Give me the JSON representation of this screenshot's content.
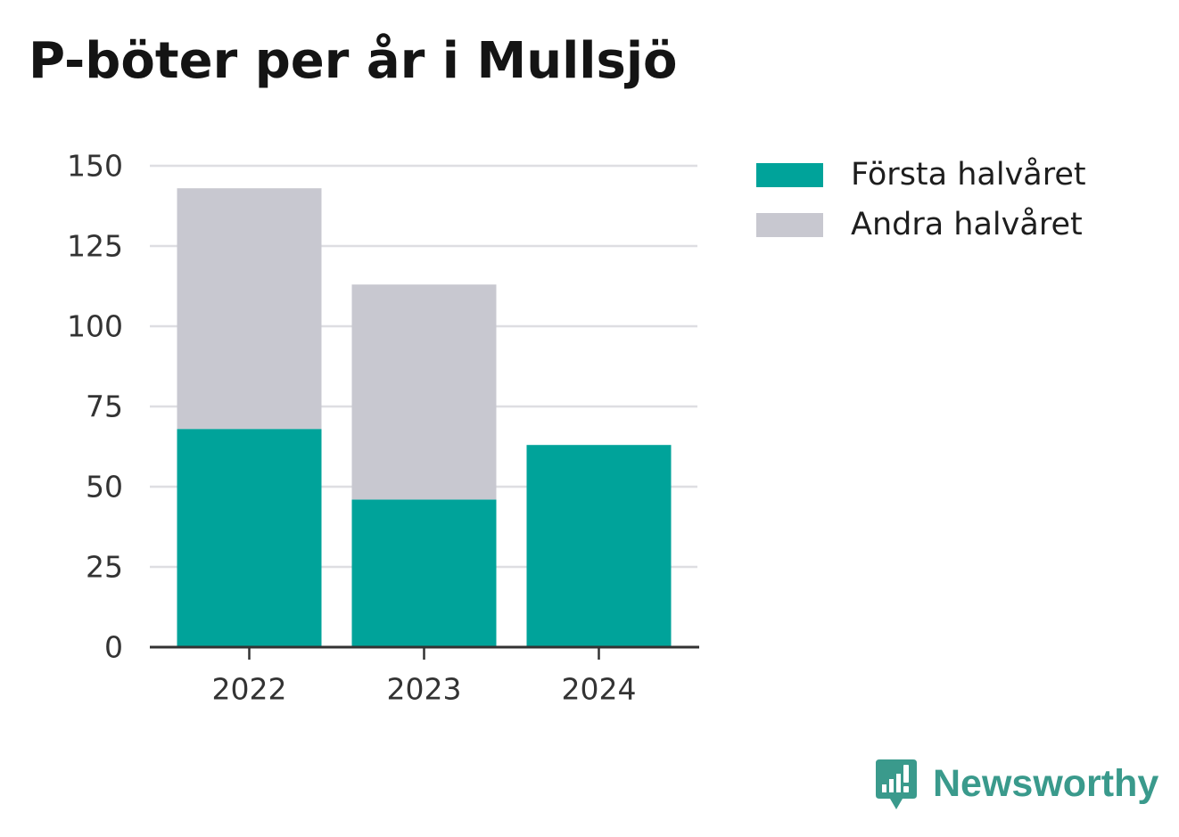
{
  "chart_data": {
    "type": "bar",
    "stacked": true,
    "title": "P-böter per år i Mullsjö",
    "xlabel": "",
    "ylabel": "",
    "categories": [
      "2022",
      "2023",
      "2024"
    ],
    "series": [
      {
        "name": "Första halvåret",
        "values": [
          68,
          46,
          63
        ],
        "color": "#00a39a"
      },
      {
        "name": "Andra halvåret",
        "values": [
          75,
          67,
          null
        ],
        "color": "#c8c8d0"
      }
    ],
    "ylim": [
      0,
      150
    ],
    "yticks": [
      0,
      25,
      50,
      75,
      100,
      125,
      150
    ],
    "grid": true,
    "legend_position": "right"
  },
  "brand": {
    "name": "Newsworthy",
    "icon": "newsworthy-logo-icon",
    "color": "#3a9a8c"
  }
}
